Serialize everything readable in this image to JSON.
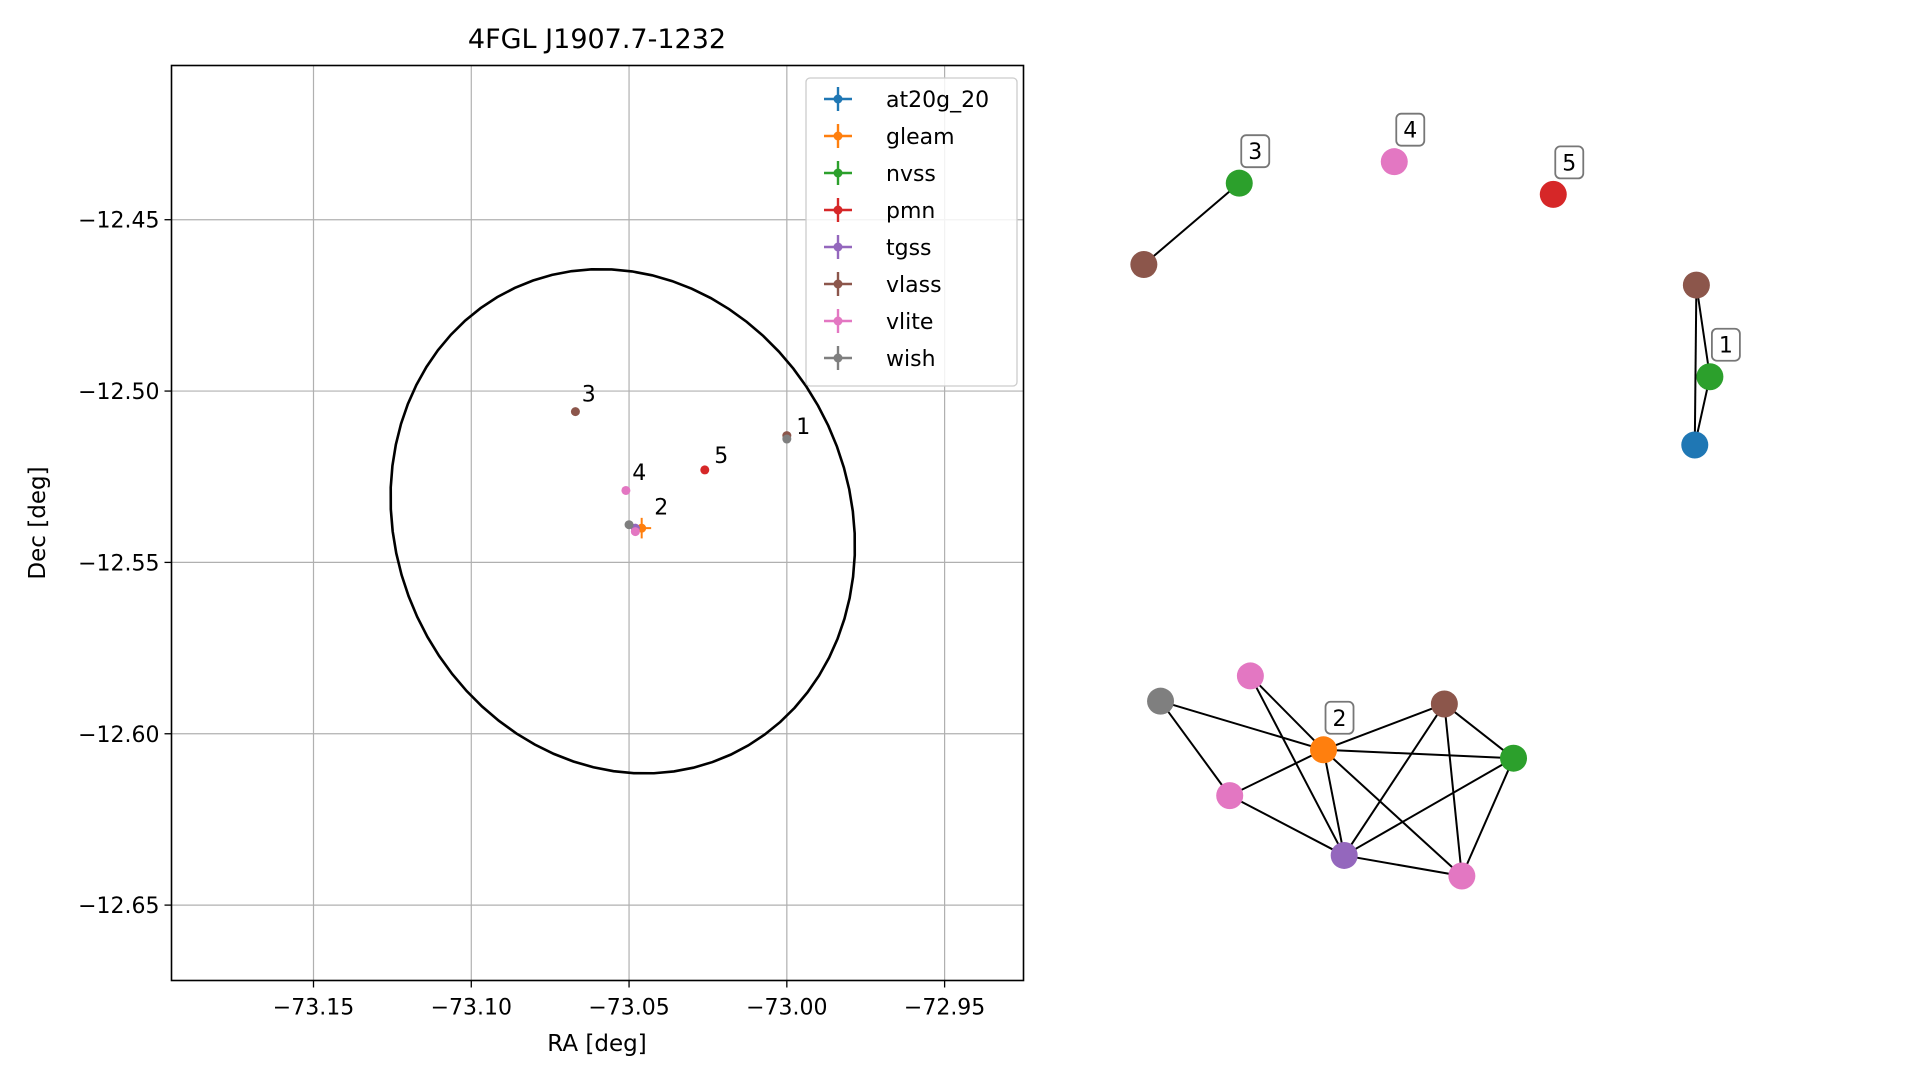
{
  "chart_data": [
    {
      "type": "scatter",
      "title": "4FGL J1907.7-1232",
      "xlabel": "RA [deg]",
      "ylabel": "Dec [deg]",
      "xlim": [
        -73.195,
        -72.925
      ],
      "ylim": [
        -12.672,
        -12.405
      ],
      "xticks": [
        -73.15,
        -73.1,
        -73.05,
        -73.0,
        -72.95
      ],
      "xtick_labels": [
        "−73.15",
        "−73.10",
        "−73.05",
        "−73.00",
        "−72.95"
      ],
      "yticks": [
        -12.45,
        -12.5,
        -12.55,
        -12.6,
        -12.65
      ],
      "ytick_labels": [
        "−12.45",
        "−12.50",
        "−12.55",
        "−12.60",
        "−12.65"
      ],
      "grid": true,
      "legend_position": "top-right",
      "ellipse": {
        "center": [
          -73.052,
          -12.538
        ],
        "semi_width_deg": 0.077,
        "semi_height_deg": 0.07,
        "angle_deg": -45
      },
      "series": [
        {
          "name": "at20g_20",
          "color": "#1f77b4",
          "points": []
        },
        {
          "name": "gleam",
          "color": "#ff7f0e",
          "points": [
            {
              "x": -73.046,
              "y": -12.54,
              "xerr": 0.003,
              "yerr": 0.003
            }
          ]
        },
        {
          "name": "nvss",
          "color": "#2ca02c",
          "points": []
        },
        {
          "name": "pmn",
          "color": "#d62728",
          "points": [
            {
              "x": -73.026,
              "y": -12.523,
              "xerr": 0,
              "yerr": 0
            }
          ]
        },
        {
          "name": "tgss",
          "color": "#9467bd",
          "points": [
            {
              "x": -73.048,
              "y": -12.54,
              "xerr": 0,
              "yerr": 0
            }
          ]
        },
        {
          "name": "vlass",
          "color": "#8c564b",
          "points": [
            {
              "x": -73.067,
              "y": -12.506,
              "xerr": 0,
              "yerr": 0
            },
            {
              "x": -73.0,
              "y": -12.513,
              "xerr": 0,
              "yerr": 0
            }
          ]
        },
        {
          "name": "vlite",
          "color": "#e377c2",
          "points": [
            {
              "x": -73.051,
              "y": -12.529,
              "xerr": 0,
              "yerr": 0
            },
            {
              "x": -73.048,
              "y": -12.541,
              "xerr": 0,
              "yerr": 0
            }
          ]
        },
        {
          "name": "wish",
          "color": "#7f7f7f",
          "points": [
            {
              "x": -73.05,
              "y": -12.539,
              "xerr": 0,
              "yerr": 0
            },
            {
              "x": -73.0,
              "y": -12.514,
              "xerr": 0,
              "yerr": 0
            }
          ]
        }
      ],
      "annotations": [
        {
          "text": "1",
          "x": -72.997,
          "y": -12.5125
        },
        {
          "text": "2",
          "x": -73.042,
          "y": -12.536
        },
        {
          "text": "3",
          "x": -73.065,
          "y": -12.503
        },
        {
          "text": "4",
          "x": -73.049,
          "y": -12.526
        },
        {
          "text": "5",
          "x": -73.023,
          "y": -12.521
        }
      ]
    },
    {
      "type": "network",
      "xlim": [
        0,
        1
      ],
      "ylim": [
        0,
        1
      ],
      "nodes": [
        {
          "id": "n3a",
          "color": "#8c564b",
          "x": 0.03,
          "y": 0.808
        },
        {
          "id": "n3b",
          "color": "#2ca02c",
          "x": 0.15,
          "y": 0.895
        },
        {
          "id": "n4",
          "color": "#e377c2",
          "x": 0.345,
          "y": 0.918
        },
        {
          "id": "n5",
          "color": "#d62728",
          "x": 0.545,
          "y": 0.883
        },
        {
          "id": "n1a",
          "color": "#8c564b",
          "x": 0.725,
          "y": 0.786
        },
        {
          "id": "n1b",
          "color": "#2ca02c",
          "x": 0.742,
          "y": 0.688
        },
        {
          "id": "n1c",
          "color": "#1f77b4",
          "x": 0.723,
          "y": 0.615
        },
        {
          "id": "g1",
          "color": "#7f7f7f",
          "x": 0.051,
          "y": 0.341
        },
        {
          "id": "g2",
          "color": "#e377c2",
          "x": 0.164,
          "y": 0.368
        },
        {
          "id": "g3",
          "color": "#ff7f0e",
          "x": 0.256,
          "y": 0.289
        },
        {
          "id": "g4",
          "color": "#8c564b",
          "x": 0.408,
          "y": 0.338
        },
        {
          "id": "g5",
          "color": "#2ca02c",
          "x": 0.495,
          "y": 0.28
        },
        {
          "id": "g6",
          "color": "#e377c2",
          "x": 0.138,
          "y": 0.24
        },
        {
          "id": "g7",
          "color": "#9467bd",
          "x": 0.282,
          "y": 0.176
        },
        {
          "id": "g8",
          "color": "#e377c2",
          "x": 0.43,
          "y": 0.154
        }
      ],
      "edges": [
        [
          "n3a",
          "n3b"
        ],
        [
          "n1a",
          "n1b"
        ],
        [
          "n1a",
          "n1c"
        ],
        [
          "n1b",
          "n1c"
        ],
        [
          "g1",
          "g3"
        ],
        [
          "g1",
          "g6"
        ],
        [
          "g2",
          "g3"
        ],
        [
          "g2",
          "g7"
        ],
        [
          "g3",
          "g4"
        ],
        [
          "g3",
          "g5"
        ],
        [
          "g3",
          "g6"
        ],
        [
          "g3",
          "g7"
        ],
        [
          "g3",
          "g8"
        ],
        [
          "g4",
          "g5"
        ],
        [
          "g4",
          "g7"
        ],
        [
          "g4",
          "g8"
        ],
        [
          "g5",
          "g7"
        ],
        [
          "g5",
          "g8"
        ],
        [
          "g6",
          "g7"
        ],
        [
          "g7",
          "g8"
        ]
      ],
      "labels": [
        {
          "text": "1",
          "node": "n1b"
        },
        {
          "text": "2",
          "node": "g3"
        },
        {
          "text": "3",
          "node": "n3b"
        },
        {
          "text": "4",
          "node": "n4"
        },
        {
          "text": "5",
          "node": "n5"
        }
      ]
    }
  ]
}
